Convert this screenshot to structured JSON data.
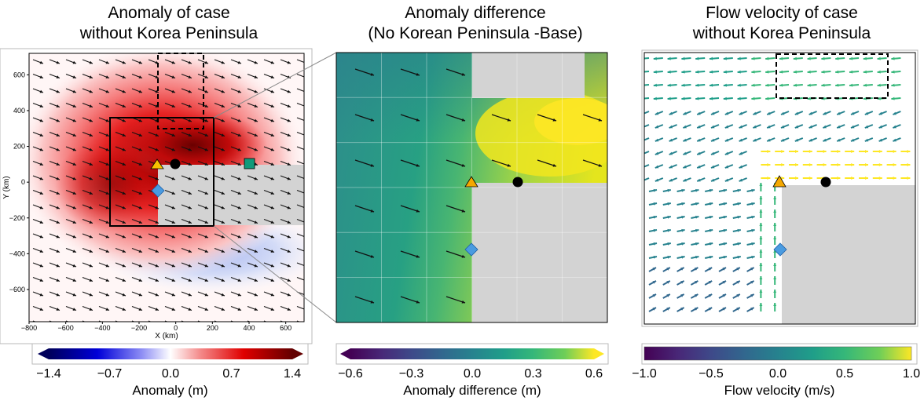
{
  "panels": {
    "left": {
      "title_line1": "Anomaly of case",
      "title_line2": "without Korea Peninsula",
      "xlabel": "X (km)",
      "ylabel": "Y (km)",
      "xticks": [
        -800,
        -600,
        -400,
        -200,
        0,
        200,
        400,
        600
      ],
      "yticks": [
        600,
        400,
        200,
        0,
        -200,
        -400,
        -600
      ],
      "colorbar_ticks": [
        "-1.4",
        "-0.7",
        "0.0",
        "0.7",
        "1.4"
      ],
      "colorbar_label": "Anomaly (m)"
    },
    "middle": {
      "title_line1": "Anomaly difference",
      "title_line2": "(No Korean Peninsula -Base)",
      "colorbar_ticks": [
        "-0.6",
        "-0.3",
        "0.0",
        "0.3",
        "0.6"
      ],
      "colorbar_label": "Anomaly difference (m)"
    },
    "right": {
      "title_line1": "Flow velocity of case",
      "title_line2": "without Korea Peninsula",
      "colorbar_ticks": [
        "-1.0",
        "-0.5",
        "0.0",
        "0.5",
        "1.0"
      ],
      "colorbar_label": "Flow velocity (m/s)"
    }
  },
  "chart_data": [
    {
      "type": "heatmap",
      "title": "Anomaly of case without Korea Peninsula",
      "xlabel": "X (km)",
      "ylabel": "Y (km)",
      "xlim": [
        -800,
        700
      ],
      "ylim": [
        -780,
        720
      ],
      "colorbar": {
        "label": "Anomaly (m)",
        "range": [
          -1.4,
          1.4
        ],
        "colormap": "blue-white-red",
        "extend": "both"
      },
      "land_rect_km": {
        "x": [
          -100,
          700
        ],
        "y": [
          -200,
          160
        ]
      },
      "markers": [
        {
          "shape": "triangle",
          "color": "#f5c200",
          "x": -100,
          "y": 160
        },
        {
          "shape": "circle",
          "color": "#000000",
          "x": 0,
          "y": 160
        },
        {
          "shape": "square",
          "color": "#119a7a",
          "x": 400,
          "y": 160
        },
        {
          "shape": "diamond",
          "color": "#4a9be0",
          "x": -100,
          "y": -30
        }
      ],
      "inset_box_km": {
        "x": [
          -370,
          200
        ],
        "y": [
          -210,
          370
        ]
      },
      "dashed_box_km": {
        "x": [
          -100,
          150
        ],
        "y": [
          300,
          720
        ]
      },
      "max_anomaly_m": 1.4,
      "min_anomaly_m": -0.5
    },
    {
      "type": "heatmap",
      "title": "Anomaly difference (No Korean Peninsula -Base)",
      "colorbar": {
        "label": "Anomaly difference (m)",
        "range": [
          -0.6,
          0.6
        ],
        "colormap": "viridis",
        "extend": "both"
      }
    },
    {
      "type": "heatmap",
      "title": "Flow velocity of case without Korea Peninsula",
      "colorbar": {
        "label": "Flow velocity (m/s)",
        "range": [
          -1.0,
          1.0
        ],
        "colormap": "viridis"
      }
    }
  ],
  "colors": {
    "frame": "#000000",
    "land": "#d3d3d3",
    "triangle": "#f5c200",
    "diamond": "#4a9be0",
    "square": "#119a7a"
  }
}
